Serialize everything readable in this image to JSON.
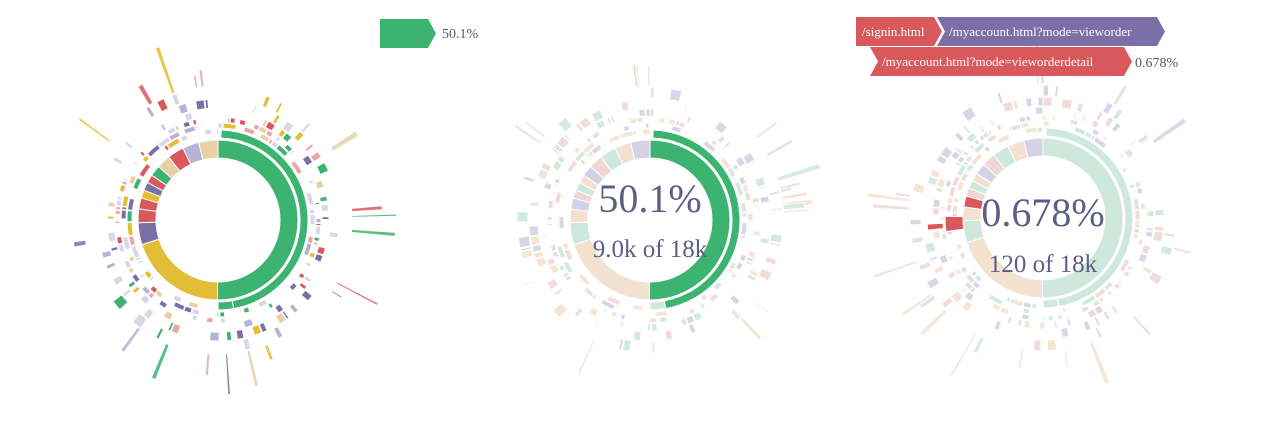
{
  "colors": {
    "green": "#3cb371",
    "yellow": "#e3bd36",
    "purple": "#7b6fa8",
    "red": "#d9585c",
    "pale_green": "#cfe8de",
    "pale_peach": "#f3e2cf",
    "text": "#5e5d86"
  },
  "panels": [
    {
      "id": "panel-1",
      "breadcrumb": [
        {
          "label": "",
          "color": "#3cb371"
        }
      ],
      "percentage": "50.1%",
      "center": null
    },
    {
      "id": "panel-2",
      "breadcrumb": [],
      "percentage": "",
      "center": {
        "percentage": "50.1%",
        "count": "9.0k of 18k"
      }
    },
    {
      "id": "panel-3",
      "breadcrumb": [
        {
          "label": "/signin.html",
          "color": "#d9585c"
        },
        {
          "label": "/myaccount.html?mode=vieworder",
          "color": "#7b6fa8"
        },
        {
          "label": "/myaccount.html?mode=vieworderdetail",
          "color": "#d9585c"
        }
      ],
      "percentage": "0.678%",
      "center": {
        "percentage": "0.678%",
        "count": "120 of 18k"
      }
    }
  ],
  "chart_data": [
    {
      "type": "sunburst",
      "panel": "panel-1",
      "rings": [
        {
          "level": 1,
          "segments": [
            {
              "name": "green",
              "share": 0.501,
              "color": "#3cb371"
            },
            {
              "name": "yellow",
              "share": 0.2,
              "color": "#e3bd36"
            },
            {
              "name": "other",
              "share": 0.299,
              "color": "#7b6fa8"
            }
          ]
        }
      ]
    },
    {
      "type": "sunburst",
      "panel": "panel-2",
      "highlight": {
        "share": 0.501,
        "value": "9.0k",
        "total": "18k"
      }
    },
    {
      "type": "sunburst",
      "panel": "panel-3",
      "highlight": {
        "share": 0.00678,
        "value": "120",
        "total": "18k"
      }
    }
  ]
}
